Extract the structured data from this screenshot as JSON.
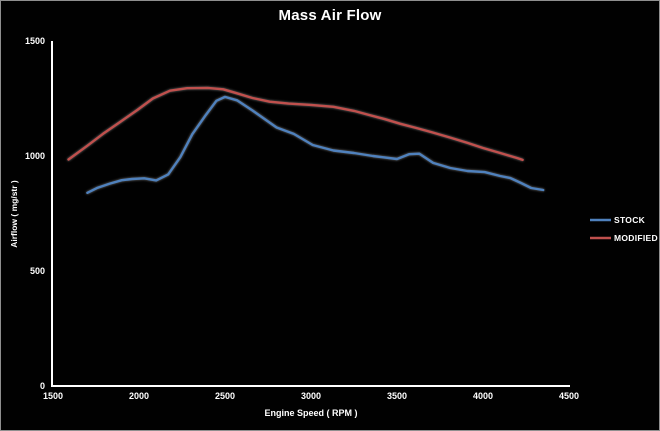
{
  "window": {
    "background": "#010101",
    "border_color": "#8f8f8f",
    "text_color": "#ffffff",
    "axis_color": "#ffffff"
  },
  "chart_data": {
    "type": "line",
    "title": "Mass Air Flow",
    "xlabel": "Engine Speed ( RPM )",
    "ylabel": "Airflow ( mg/str )",
    "xlim": [
      1500,
      4500
    ],
    "ylim": [
      0,
      1500
    ],
    "x_ticks": [
      "1500",
      "2000",
      "2500",
      "3000",
      "3500",
      "4000",
      "4500"
    ],
    "x_tick_values": [
      1500,
      2000,
      2500,
      3000,
      3500,
      4000,
      4500
    ],
    "y_ticks": [
      "0",
      "500",
      "1000",
      "1500"
    ],
    "y_tick_values": [
      0,
      500,
      1000,
      1500
    ],
    "grid": false,
    "legend_position": "right",
    "series": [
      {
        "name": "STOCK",
        "color": "#4f81bd",
        "points": [
          [
            1700,
            840
          ],
          [
            1760,
            862
          ],
          [
            1830,
            880
          ],
          [
            1900,
            895
          ],
          [
            1960,
            900
          ],
          [
            2030,
            903
          ],
          [
            2100,
            894
          ],
          [
            2170,
            920
          ],
          [
            2240,
            995
          ],
          [
            2310,
            1095
          ],
          [
            2390,
            1180
          ],
          [
            2450,
            1240
          ],
          [
            2500,
            1257
          ],
          [
            2570,
            1242
          ],
          [
            2660,
            1198
          ],
          [
            2800,
            1124
          ],
          [
            2900,
            1096
          ],
          [
            3010,
            1048
          ],
          [
            3130,
            1024
          ],
          [
            3250,
            1013
          ],
          [
            3360,
            1000
          ],
          [
            3500,
            987
          ],
          [
            3570,
            1008
          ],
          [
            3630,
            1010
          ],
          [
            3710,
            970
          ],
          [
            3810,
            948
          ],
          [
            3910,
            935
          ],
          [
            4010,
            930
          ],
          [
            4100,
            913
          ],
          [
            4160,
            904
          ],
          [
            4220,
            883
          ],
          [
            4280,
            861
          ],
          [
            4350,
            852
          ]
        ]
      },
      {
        "name": "MODIFIED",
        "color": "#c0504d",
        "points": [
          [
            1590,
            985
          ],
          [
            1700,
            1045
          ],
          [
            1790,
            1096
          ],
          [
            1890,
            1148
          ],
          [
            1990,
            1200
          ],
          [
            2080,
            1250
          ],
          [
            2180,
            1284
          ],
          [
            2280,
            1295
          ],
          [
            2400,
            1296
          ],
          [
            2490,
            1290
          ],
          [
            2560,
            1275
          ],
          [
            2660,
            1252
          ],
          [
            2760,
            1236
          ],
          [
            2870,
            1228
          ],
          [
            3000,
            1222
          ],
          [
            3130,
            1214
          ],
          [
            3250,
            1196
          ],
          [
            3330,
            1180
          ],
          [
            3430,
            1160
          ],
          [
            3520,
            1140
          ],
          [
            3610,
            1122
          ],
          [
            3700,
            1104
          ],
          [
            3810,
            1080
          ],
          [
            3910,
            1057
          ],
          [
            4000,
            1035
          ],
          [
            4100,
            1013
          ],
          [
            4200,
            991
          ],
          [
            4230,
            983
          ]
        ]
      }
    ]
  }
}
